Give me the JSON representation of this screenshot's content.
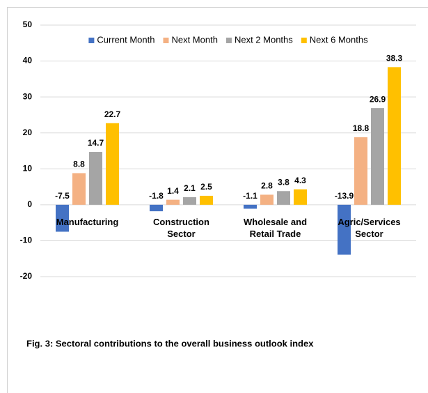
{
  "chart_data": {
    "type": "bar",
    "categories": [
      "Manufacturing",
      "Construction Sector",
      "Wholesale and Retail Trade",
      "Agric/Services Sector"
    ],
    "series": [
      {
        "name": "Current Month",
        "color": "#4472c4",
        "values": [
          -7.5,
          -1.8,
          -1.1,
          -13.9
        ]
      },
      {
        "name": "Next Month",
        "color": "#f4b183",
        "values": [
          8.8,
          1.4,
          2.8,
          18.8
        ]
      },
      {
        "name": "Next 2 Months",
        "color": "#a5a5a5",
        "values": [
          14.7,
          2.1,
          3.8,
          26.9
        ]
      },
      {
        "name": "Next 6 Months",
        "color": "#ffc000",
        "values": [
          22.7,
          2.5,
          4.3,
          38.3
        ]
      }
    ],
    "ylim": [
      -20,
      50
    ],
    "yticks": [
      -20,
      -10,
      0,
      10,
      20,
      30,
      40,
      50
    ],
    "grid": true,
    "legend": "top",
    "caption": "Fig. 3: Sectoral contributions to the overall business outlook index"
  }
}
